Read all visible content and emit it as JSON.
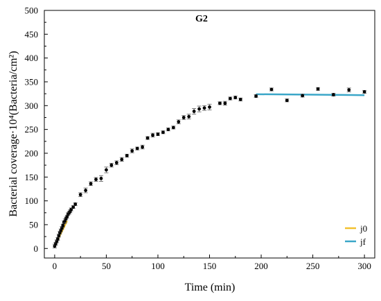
{
  "chart_data": {
    "type": "scatter",
    "title": "G2",
    "xlabel": "Time (min)",
    "ylabel": "Bacterial coverage·10⁴(Bacteria/cm²)",
    "xlim": [
      -10,
      310
    ],
    "ylim": [
      -20,
      500
    ],
    "xticks": [
      "0",
      "50",
      "100",
      "150",
      "200",
      "250",
      "300"
    ],
    "yticks": [
      "0",
      "50",
      "100",
      "150",
      "200",
      "250",
      "300",
      "350",
      "400",
      "450",
      "500"
    ],
    "grid": false,
    "legend_position": "bottom-right",
    "colors": {
      "points": "#000000",
      "j0": "#f2c12e",
      "jf": "#3aa6c8"
    },
    "points": {
      "x": [
        0,
        1,
        2,
        3,
        4,
        5,
        6,
        7,
        8,
        9,
        10,
        11,
        12,
        13,
        14,
        15,
        16,
        18,
        20,
        25,
        30,
        35,
        40,
        45,
        50,
        55,
        60,
        65,
        70,
        75,
        80,
        85,
        90,
        95,
        100,
        105,
        110,
        115,
        120,
        125,
        130,
        135,
        140,
        145,
        150,
        160,
        165,
        170,
        175,
        180,
        195,
        210,
        225,
        240,
        255,
        270,
        285,
        300
      ],
      "y": [
        5,
        10,
        15,
        20,
        27,
        33,
        38,
        43,
        48,
        55,
        58,
        63,
        67,
        72,
        75,
        78,
        82,
        87,
        93,
        113,
        122,
        136,
        145,
        147,
        165,
        175,
        180,
        187,
        195,
        205,
        210,
        213,
        232,
        238,
        240,
        244,
        250,
        254,
        266,
        275,
        277,
        288,
        293,
        295,
        297,
        305,
        305,
        315,
        317,
        313,
        320,
        334,
        311,
        321,
        335,
        323,
        333,
        329
      ],
      "err": [
        4,
        3,
        3,
        3,
        3,
        3,
        3,
        3,
        3,
        3,
        4,
        3,
        3,
        3,
        3,
        3,
        3,
        3,
        3,
        4,
        5,
        4,
        4,
        6,
        6,
        4,
        4,
        4,
        3,
        4,
        3,
        4,
        3,
        4,
        3,
        3,
        3,
        3,
        4,
        4,
        5,
        6,
        6,
        5,
        6,
        3,
        4,
        3,
        3,
        3,
        3,
        3,
        3,
        3,
        3,
        3,
        4,
        3
      ]
    },
    "series": [
      {
        "name": "j0",
        "x": [
          0,
          12
        ],
        "y": [
          5,
          58
        ]
      },
      {
        "name": "jf",
        "x": [
          195,
          300
        ],
        "y": [
          324,
          322
        ]
      }
    ]
  }
}
